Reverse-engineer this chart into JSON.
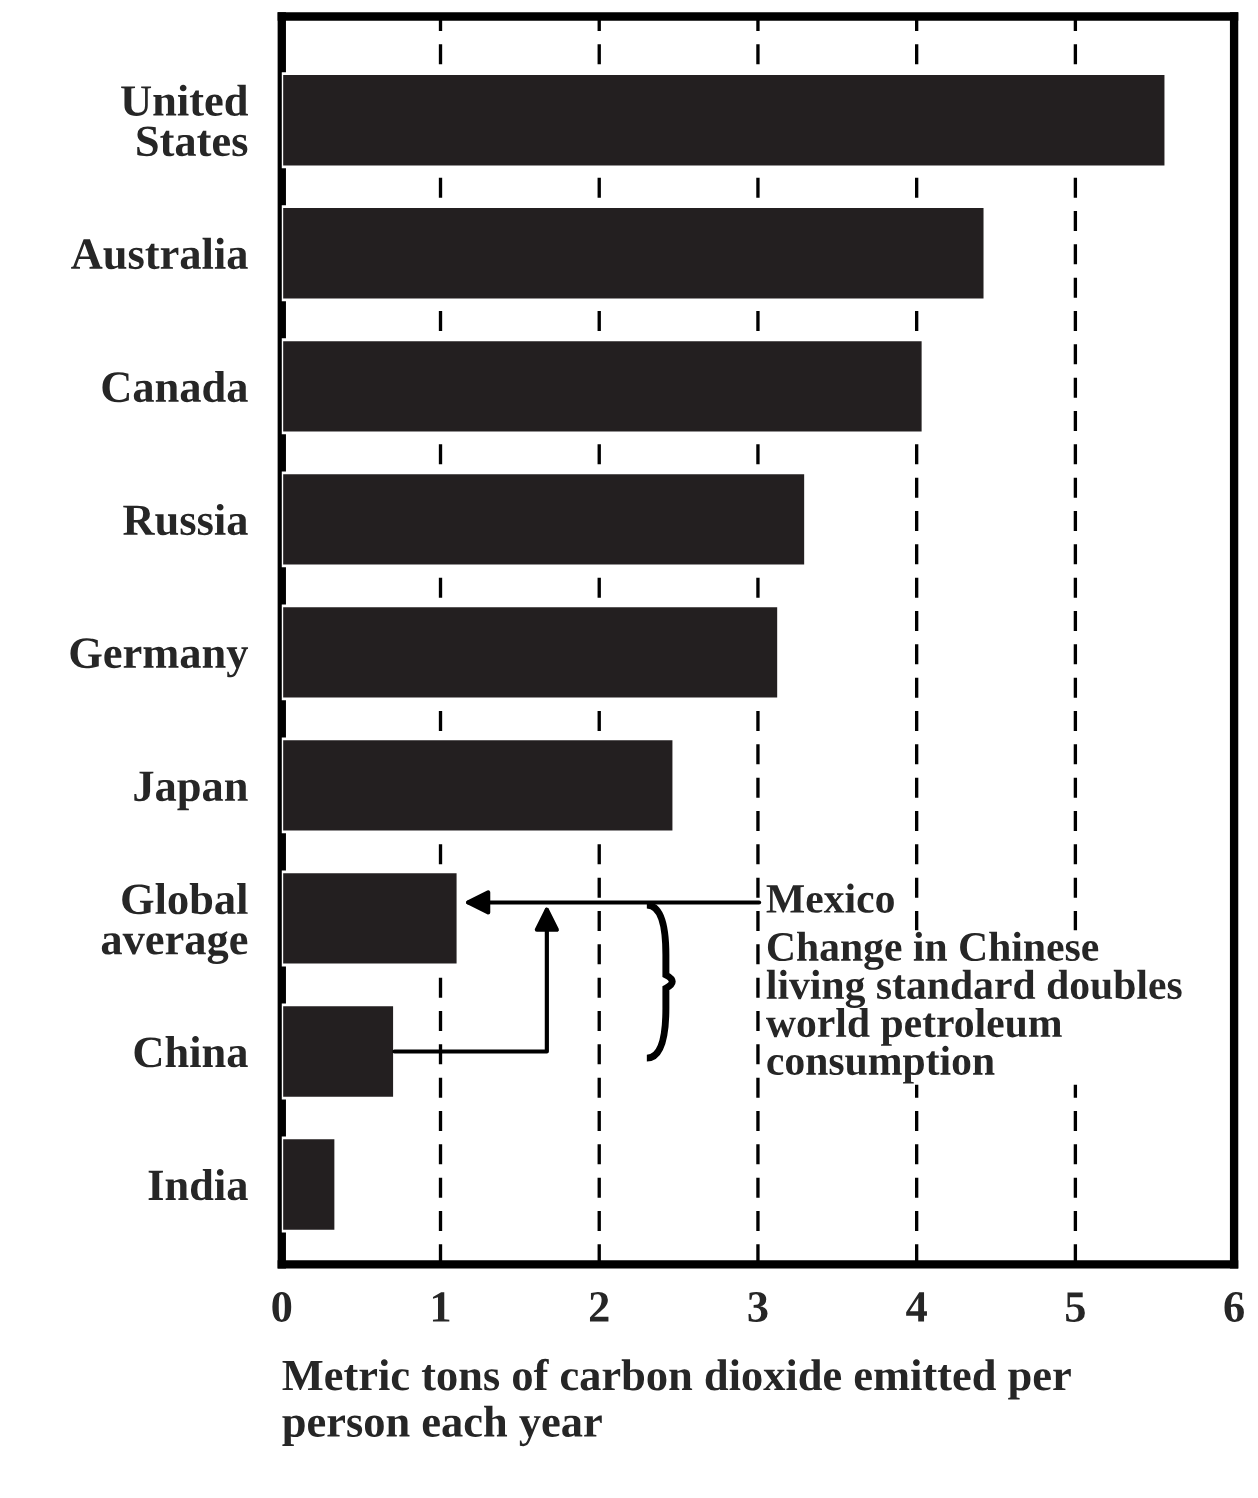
{
  "chart_data": {
    "type": "bar",
    "orientation": "horizontal",
    "categories": [
      "United\nStates",
      "Australia",
      "Canada",
      "Russia",
      "Germany",
      "Japan",
      "Global\naverage",
      "China",
      "India"
    ],
    "values": [
      5.57,
      4.43,
      4.04,
      3.3,
      3.13,
      2.47,
      1.11,
      0.71,
      0.34
    ],
    "color": "#231f20",
    "xlabel": "Metric tons of carbon dioxide emitted per\nperson each year",
    "xlim": [
      0,
      6
    ],
    "xticks": [
      0,
      1,
      2,
      3,
      4,
      5,
      6
    ],
    "grid": "x",
    "annotations": [
      "Mexico",
      "Change in Chinese\nliving standard doubles\nworld petroleum\nconsumption"
    ]
  }
}
